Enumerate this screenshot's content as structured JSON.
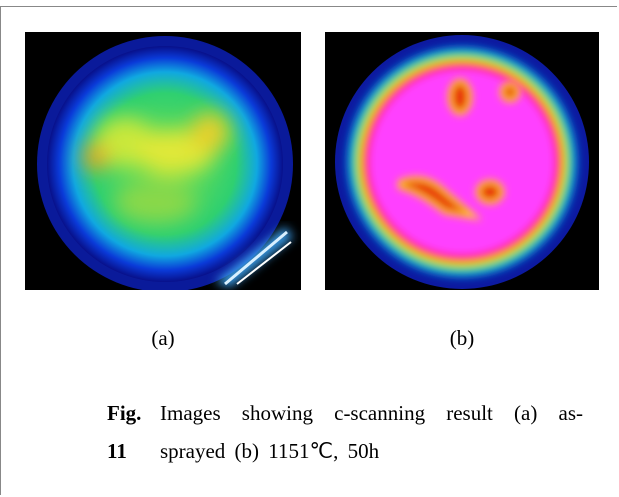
{
  "figure": {
    "panels": [
      {
        "label": "(a)"
      },
      {
        "label": "(b)"
      }
    ],
    "caption": {
      "label": "Fig. 11",
      "text": "Images showing c-scanning result (a) as-sprayed (b) 1151℃, 50h"
    }
  }
}
